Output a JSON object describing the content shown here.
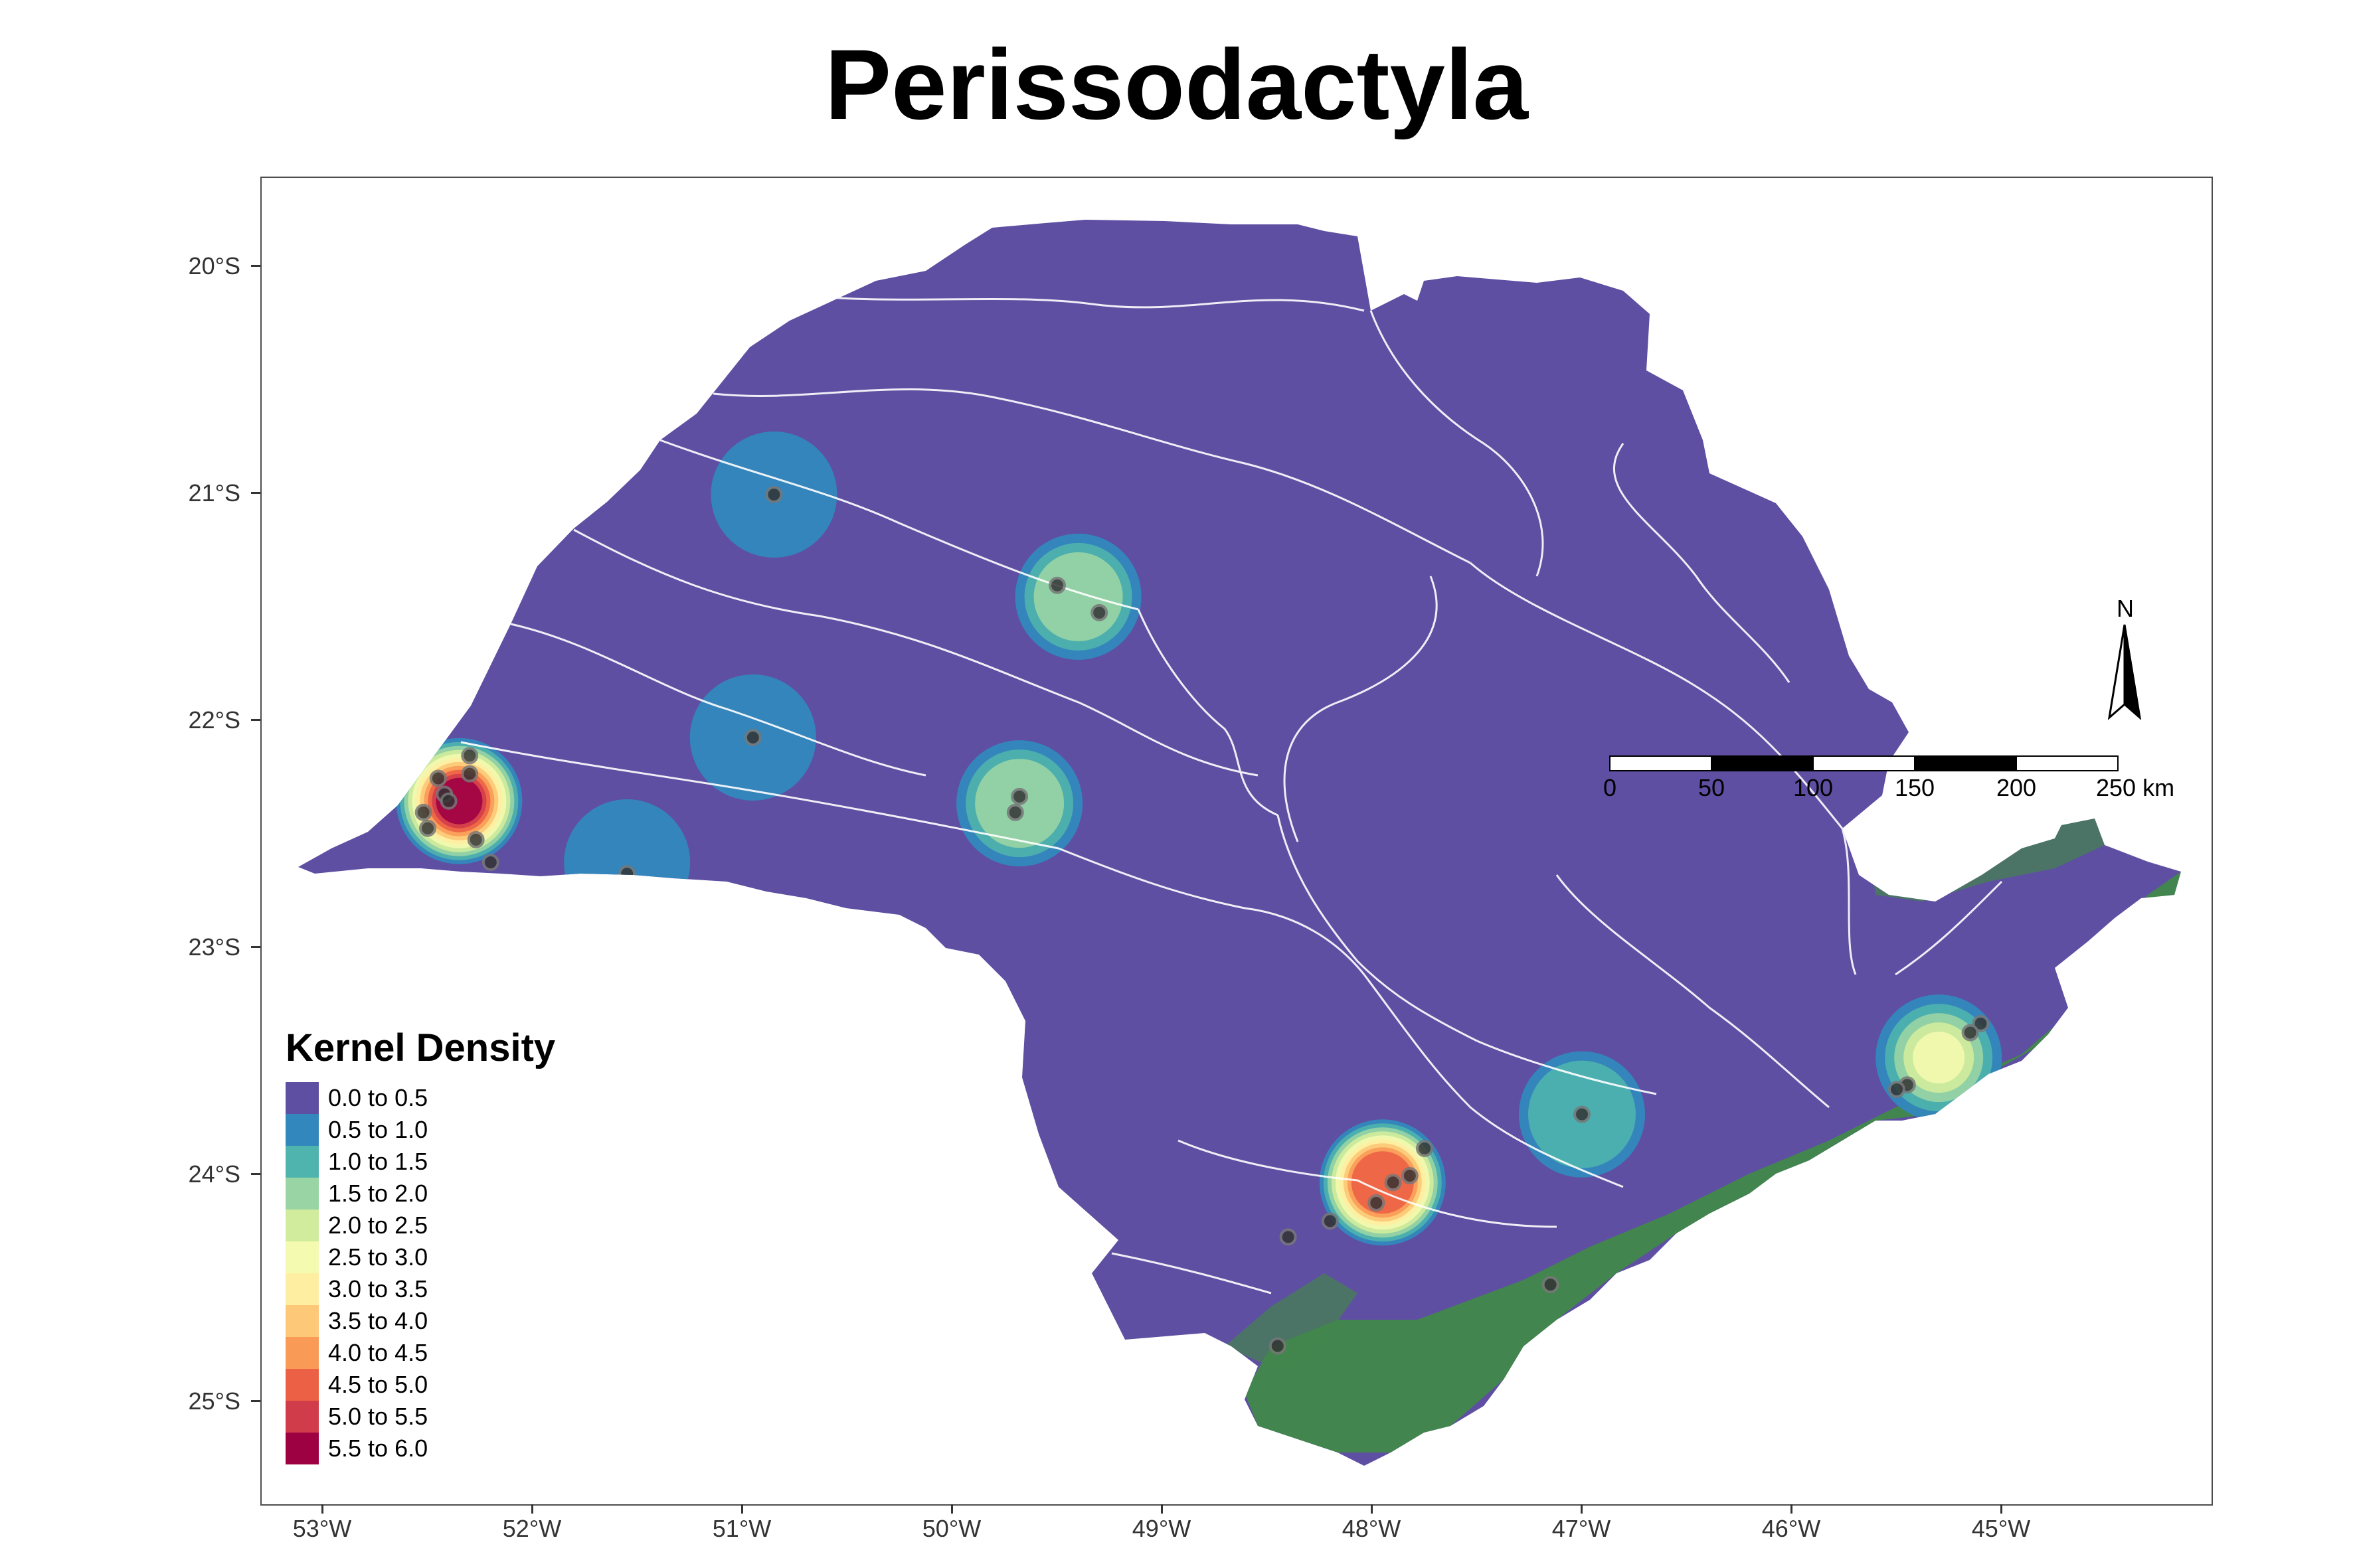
{
  "title": "Perissodactyla",
  "axes": {
    "y_ticks": [
      "20°S",
      "21°S",
      "22°S",
      "23°S",
      "24°S",
      "25°S"
    ],
    "x_ticks": [
      "53°W",
      "52°W",
      "51°W",
      "50°W",
      "49°W",
      "48°W",
      "47°W",
      "46°W",
      "45°W"
    ]
  },
  "legend": {
    "title": "Kernel Density",
    "items": [
      {
        "label": "0.0 to 0.5",
        "color": "#5e4fa2"
      },
      {
        "label": "0.5 to 1.0",
        "color": "#3288bd"
      },
      {
        "label": "1.0 to 1.5",
        "color": "#4fb4ad"
      },
      {
        "label": "1.5 to 2.0",
        "color": "#99d5a4"
      },
      {
        "label": "2.0 to 2.5",
        "color": "#d1ec9c"
      },
      {
        "label": "2.5 to 3.0",
        "color": "#f4fab0"
      },
      {
        "label": "3.0 to 3.5",
        "color": "#feeea2"
      },
      {
        "label": "3.5 to 4.0",
        "color": "#fdc877"
      },
      {
        "label": "4.0 to 4.5",
        "color": "#f99b56"
      },
      {
        "label": "4.5 to 5.0",
        "color": "#ec6145"
      },
      {
        "label": "5.0 to 5.5",
        "color": "#d13c4b"
      },
      {
        "label": "5.5 to 6.0",
        "color": "#9e0142"
      }
    ]
  },
  "scale_bar": {
    "labels": [
      "0",
      "50",
      "100",
      "150",
      "200",
      "250 km"
    ]
  },
  "north_arrow": {
    "label": "N",
    "icon": "north-arrow-icon"
  },
  "colors": {
    "land": "#5e4fa2",
    "forest": "#3a8a3a",
    "rivers": "#ffffff",
    "points": "#333333"
  },
  "occurrence_points": [
    {
      "lon": -50.85,
      "lat": -21.0
    },
    {
      "lon": -49.5,
      "lat": -21.4
    },
    {
      "lon": -49.3,
      "lat": -21.52
    },
    {
      "lon": -50.95,
      "lat": -22.07
    },
    {
      "lon": -49.68,
      "lat": -22.33
    },
    {
      "lon": -49.7,
      "lat": -22.4
    },
    {
      "lon": -52.3,
      "lat": -22.15
    },
    {
      "lon": -52.45,
      "lat": -22.25
    },
    {
      "lon": -52.3,
      "lat": -22.23
    },
    {
      "lon": -52.42,
      "lat": -22.32
    },
    {
      "lon": -52.4,
      "lat": -22.35
    },
    {
      "lon": -52.52,
      "lat": -22.4
    },
    {
      "lon": -52.5,
      "lat": -22.47
    },
    {
      "lon": -52.27,
      "lat": -22.52
    },
    {
      "lon": -52.2,
      "lat": -22.62
    },
    {
      "lon": -51.55,
      "lat": -22.67
    },
    {
      "lon": -47.75,
      "lat": -23.88
    },
    {
      "lon": -47.82,
      "lat": -24.0
    },
    {
      "lon": -47.9,
      "lat": -24.03
    },
    {
      "lon": -47.98,
      "lat": -24.12
    },
    {
      "lon": -48.2,
      "lat": -24.2
    },
    {
      "lon": -48.4,
      "lat": -24.27
    },
    {
      "lon": -48.45,
      "lat": -24.75
    },
    {
      "lon": -47.15,
      "lat": -24.48
    },
    {
      "lon": -47.0,
      "lat": -23.73
    },
    {
      "lon": -45.1,
      "lat": -23.33
    },
    {
      "lon": -45.15,
      "lat": -23.37
    },
    {
      "lon": -45.45,
      "lat": -23.6
    },
    {
      "lon": -45.5,
      "lat": -23.62
    }
  ],
  "density_hotspots": [
    {
      "lon": -50.85,
      "lat": -21.0,
      "level": 1
    },
    {
      "lon": -49.4,
      "lat": -21.45,
      "level": 3
    },
    {
      "lon": -50.95,
      "lat": -22.07,
      "level": 1
    },
    {
      "lon": -49.68,
      "lat": -22.36,
      "level": 3
    },
    {
      "lon": -52.35,
      "lat": -22.35,
      "level": 11
    },
    {
      "lon": -51.55,
      "lat": -22.62,
      "level": 1
    },
    {
      "lon": -47.95,
      "lat": -24.03,
      "level": 9
    },
    {
      "lon": -47.0,
      "lat": -23.73,
      "level": 2
    },
    {
      "lon": -45.3,
      "lat": -23.48,
      "level": 5
    }
  ]
}
